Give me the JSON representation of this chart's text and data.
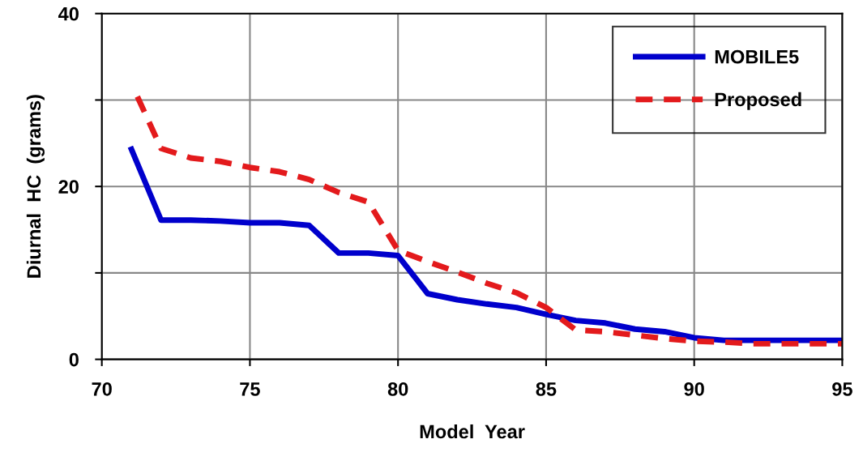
{
  "chart_data": {
    "type": "line",
    "xlabel": "Model  Year",
    "ylabel": "Diurnal  HC  (grams)",
    "xlim": [
      70,
      95
    ],
    "ylim": [
      0,
      40
    ],
    "xticks": [
      70,
      75,
      80,
      85,
      90,
      95
    ],
    "yticks": [
      0,
      {
        "value": 10,
        "label": null
      },
      20,
      {
        "value": 30,
        "label": null
      },
      40
    ],
    "grid": true,
    "legend": "top right",
    "series": [
      {
        "name": "MOBILE5",
        "color": "#0000cc",
        "line_style": "solid",
        "x": [
          71,
          72,
          73,
          74,
          75,
          76,
          77,
          78,
          79,
          80,
          81,
          82,
          83,
          84,
          85,
          86,
          87,
          88,
          89,
          90,
          91,
          92,
          93,
          94,
          95
        ],
        "values": [
          24.3,
          16.1,
          16.1,
          16.0,
          15.8,
          15.8,
          15.5,
          12.3,
          12.3,
          12.0,
          7.6,
          6.9,
          6.4,
          6.0,
          5.2,
          4.5,
          4.2,
          3.5,
          3.2,
          2.5,
          2.2,
          2.2,
          2.2,
          2.2,
          2.2
        ]
      },
      {
        "name": "Proposed",
        "color": "#e31a1c",
        "line_style": "dashed",
        "x": [
          71.2,
          72,
          73,
          74,
          75,
          76,
          77,
          78,
          79,
          80,
          81,
          82,
          83,
          84,
          85,
          86,
          87,
          88,
          89,
          90,
          91,
          92,
          93,
          94,
          95
        ],
        "values": [
          30.4,
          24.4,
          23.3,
          22.9,
          22.2,
          21.7,
          20.8,
          19.3,
          18.2,
          12.6,
          11.3,
          10.1,
          8.8,
          7.7,
          6.0,
          3.4,
          3.2,
          2.8,
          2.4,
          2.1,
          2.0,
          1.8,
          1.8,
          1.8,
          1.8
        ]
      }
    ]
  }
}
